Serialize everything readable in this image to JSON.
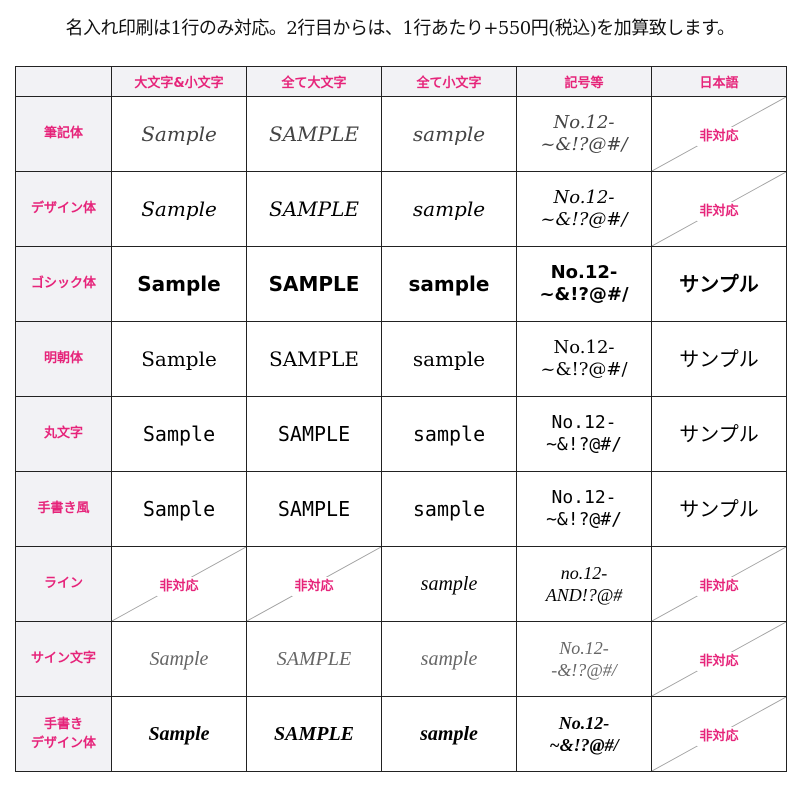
{
  "title": "名入れ印刷は1行のみ対応。2行目からは、1行あたり+550円(税込)を加算致します。",
  "accent_color": "#e6247a",
  "columns": [
    "大文字&小文字",
    "全て大文字",
    "全て小文字",
    "記号等",
    "日本語"
  ],
  "not_supported": "非対応",
  "rows": [
    {
      "label": "筆記体",
      "cells": [
        "Sample",
        "SAMPLE",
        "sample",
        "No.12-\n~&!?@#/",
        null
      ]
    },
    {
      "label": "デザイン体",
      "cells": [
        "Sample",
        "SAMPLE",
        "sample",
        "No.12-\n~&!?@#/",
        null
      ]
    },
    {
      "label": "ゴシック体",
      "cells": [
        "Sample",
        "SAMPLE",
        "sample",
        "No.12-\n~&!?@#/",
        "サンプル"
      ]
    },
    {
      "label": "明朝体",
      "cells": [
        "Sample",
        "SAMPLE",
        "sample",
        "No.12-\n~&!?@#/",
        "サンプル"
      ]
    },
    {
      "label": "丸文字",
      "cells": [
        "Sample",
        "SAMPLE",
        "sample",
        "No.12-\n~&!?@#/",
        "サンプル"
      ]
    },
    {
      "label": "手書き風",
      "cells": [
        "Sample",
        "SAMPLE",
        "sample",
        "No.12-\n~&!?@#/",
        "サンプル"
      ]
    },
    {
      "label": "ライン",
      "cells": [
        null,
        null,
        "sample",
        "no.12-\nAND!?@#",
        null
      ]
    },
    {
      "label": "サイン文字",
      "cells": [
        "Sample",
        "SAMPLE",
        "sample",
        "No.12-\n-&!?@#/",
        null
      ]
    },
    {
      "label": "手書き\nデザイン体",
      "cells": [
        "Sample",
        "SAMPLE",
        "sample",
        "No.12-\n~&!?@#/",
        null
      ]
    }
  ]
}
